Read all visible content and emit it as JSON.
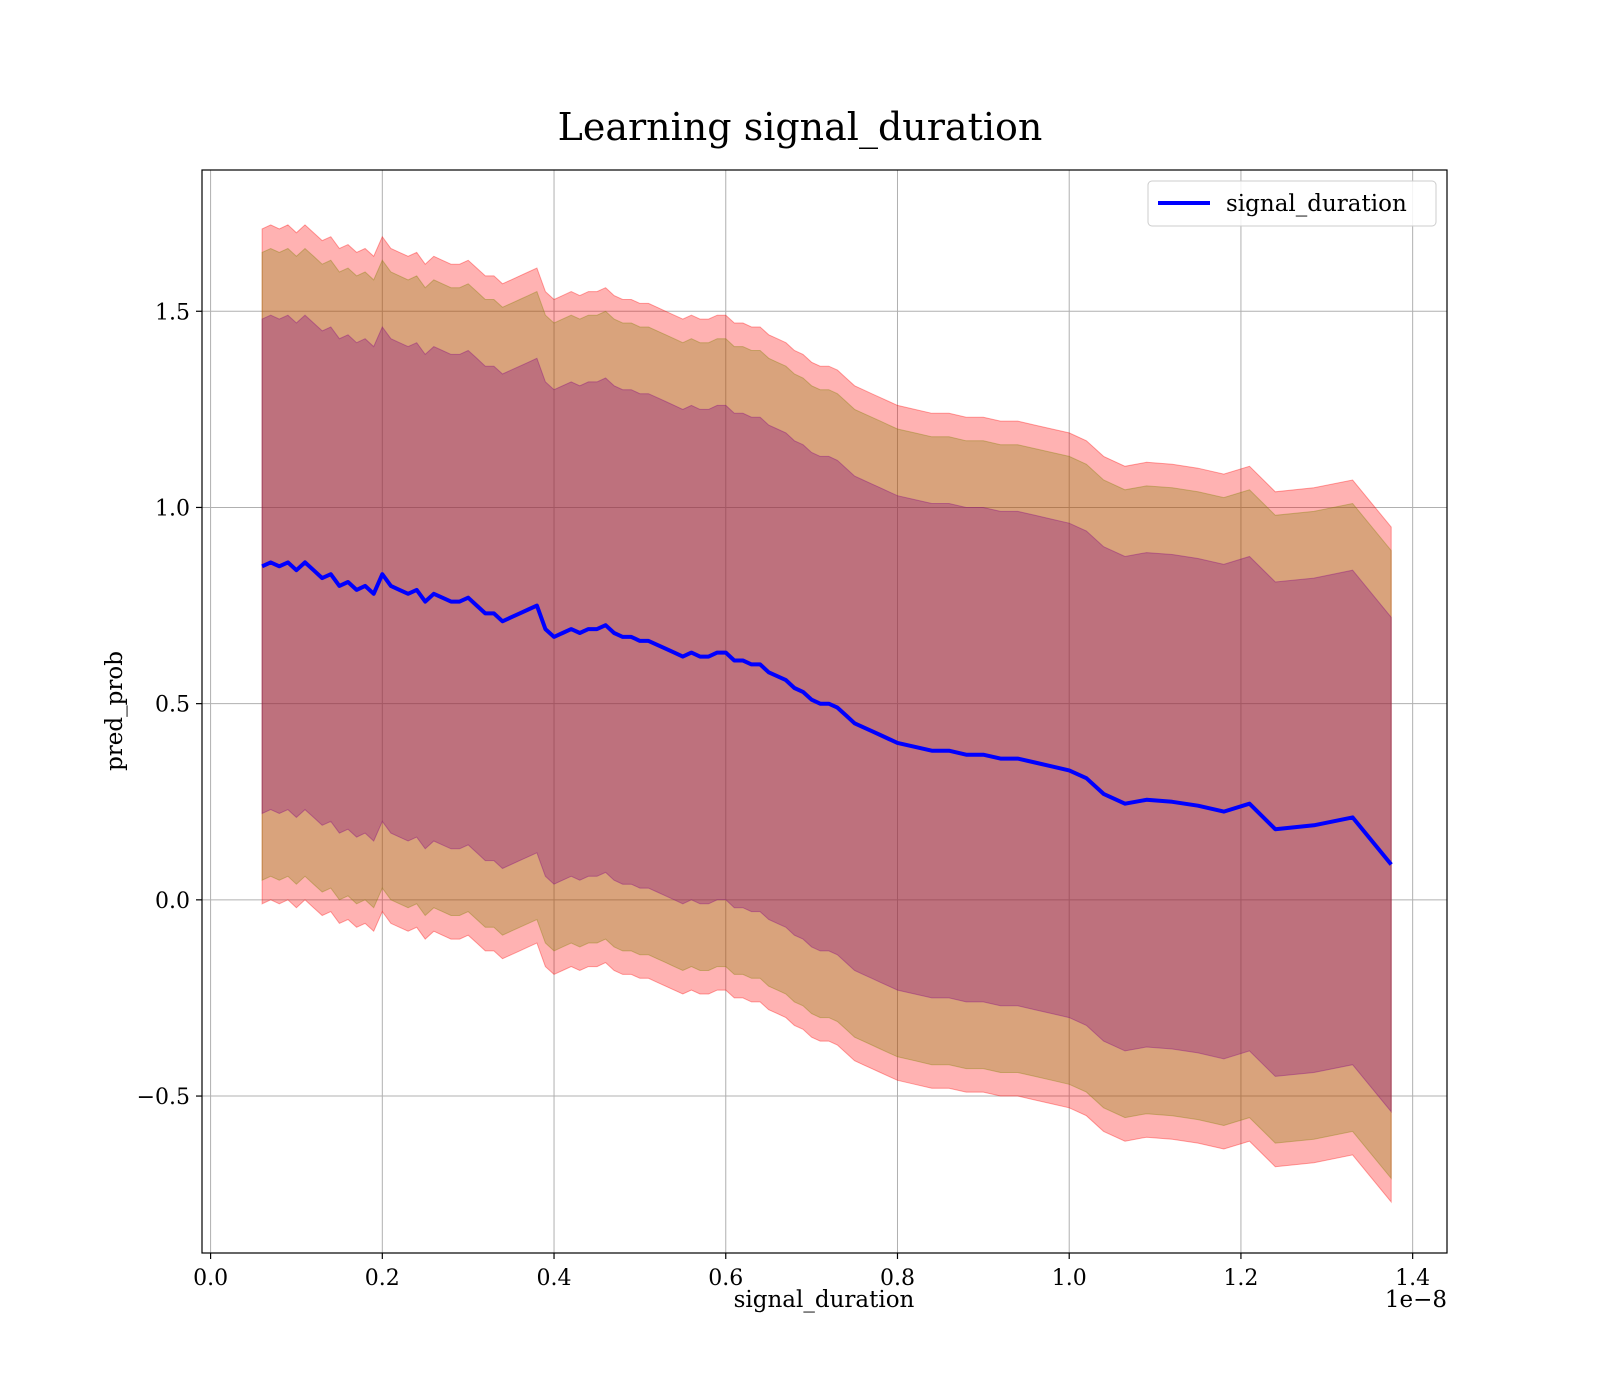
{
  "chart_data": {
    "type": "line",
    "title": "Learning signal_duration",
    "xlabel": "signal_duration",
    "ylabel": "pred_prob",
    "x_offset_label": "1e−8",
    "xlim": [
      -0.01,
      1.44
    ],
    "ylim": [
      -0.9,
      1.86
    ],
    "grid": true,
    "legend_position": "top-right",
    "x_ticks": [
      {
        "value": 0.0,
        "label": "0.0"
      },
      {
        "value": 0.2,
        "label": "0.2"
      },
      {
        "value": 0.4,
        "label": "0.4"
      },
      {
        "value": 0.6,
        "label": "0.6"
      },
      {
        "value": 0.8,
        "label": "0.8"
      },
      {
        "value": 1.0,
        "label": "1.0"
      },
      {
        "value": 1.2,
        "label": "1.2"
      },
      {
        "value": 1.4,
        "label": "1.4"
      }
    ],
    "y_ticks": [
      {
        "value": -0.5,
        "label": "−0.5"
      },
      {
        "value": 0.0,
        "label": "0.0"
      },
      {
        "value": 0.5,
        "label": "0.5"
      },
      {
        "value": 1.0,
        "label": "1.0"
      },
      {
        "value": 1.5,
        "label": "1.5"
      }
    ],
    "band_offsets": [
      0.86,
      0.8,
      0.63
    ],
    "band_colors": [
      "#ff0000",
      "#808000",
      "#800080"
    ],
    "band_opacity": 0.3,
    "series": [
      {
        "name": "signal_duration",
        "color": "#0000ff",
        "x": [
          0.06,
          0.07,
          0.08,
          0.09,
          0.1,
          0.11,
          0.12,
          0.13,
          0.14,
          0.15,
          0.16,
          0.17,
          0.18,
          0.19,
          0.2,
          0.21,
          0.22,
          0.23,
          0.24,
          0.25,
          0.26,
          0.27,
          0.28,
          0.29,
          0.3,
          0.31,
          0.32,
          0.33,
          0.34,
          0.35,
          0.36,
          0.37,
          0.38,
          0.39,
          0.4,
          0.41,
          0.42,
          0.43,
          0.44,
          0.45,
          0.46,
          0.47,
          0.48,
          0.49,
          0.5,
          0.51,
          0.52,
          0.53,
          0.54,
          0.55,
          0.56,
          0.57,
          0.58,
          0.59,
          0.6,
          0.61,
          0.62,
          0.63,
          0.64,
          0.65,
          0.66,
          0.67,
          0.68,
          0.69,
          0.7,
          0.71,
          0.72,
          0.73,
          0.74,
          0.75,
          0.76,
          0.77,
          0.78,
          0.79,
          0.8,
          0.82,
          0.84,
          0.86,
          0.88,
          0.9,
          0.92,
          0.94,
          0.96,
          0.98,
          1.0,
          1.02,
          1.04,
          1.065,
          1.09,
          1.12,
          1.15,
          1.18,
          1.21,
          1.24,
          1.285,
          1.33,
          1.375
        ],
        "y": [
          0.85,
          0.86,
          0.85,
          0.86,
          0.84,
          0.86,
          0.84,
          0.82,
          0.83,
          0.8,
          0.81,
          0.79,
          0.8,
          0.78,
          0.83,
          0.8,
          0.79,
          0.78,
          0.79,
          0.76,
          0.78,
          0.77,
          0.76,
          0.76,
          0.77,
          0.75,
          0.73,
          0.73,
          0.71,
          0.72,
          0.73,
          0.74,
          0.75,
          0.69,
          0.67,
          0.68,
          0.69,
          0.68,
          0.69,
          0.69,
          0.7,
          0.68,
          0.67,
          0.67,
          0.66,
          0.66,
          0.65,
          0.64,
          0.63,
          0.62,
          0.63,
          0.62,
          0.62,
          0.63,
          0.63,
          0.61,
          0.61,
          0.6,
          0.6,
          0.58,
          0.57,
          0.56,
          0.54,
          0.53,
          0.51,
          0.5,
          0.5,
          0.49,
          0.47,
          0.45,
          0.44,
          0.43,
          0.42,
          0.41,
          0.4,
          0.39,
          0.38,
          0.38,
          0.37,
          0.37,
          0.36,
          0.36,
          0.35,
          0.34,
          0.33,
          0.31,
          0.27,
          0.245,
          0.255,
          0.25,
          0.24,
          0.225,
          0.245,
          0.18,
          0.19,
          0.21,
          0.09
        ]
      }
    ]
  }
}
